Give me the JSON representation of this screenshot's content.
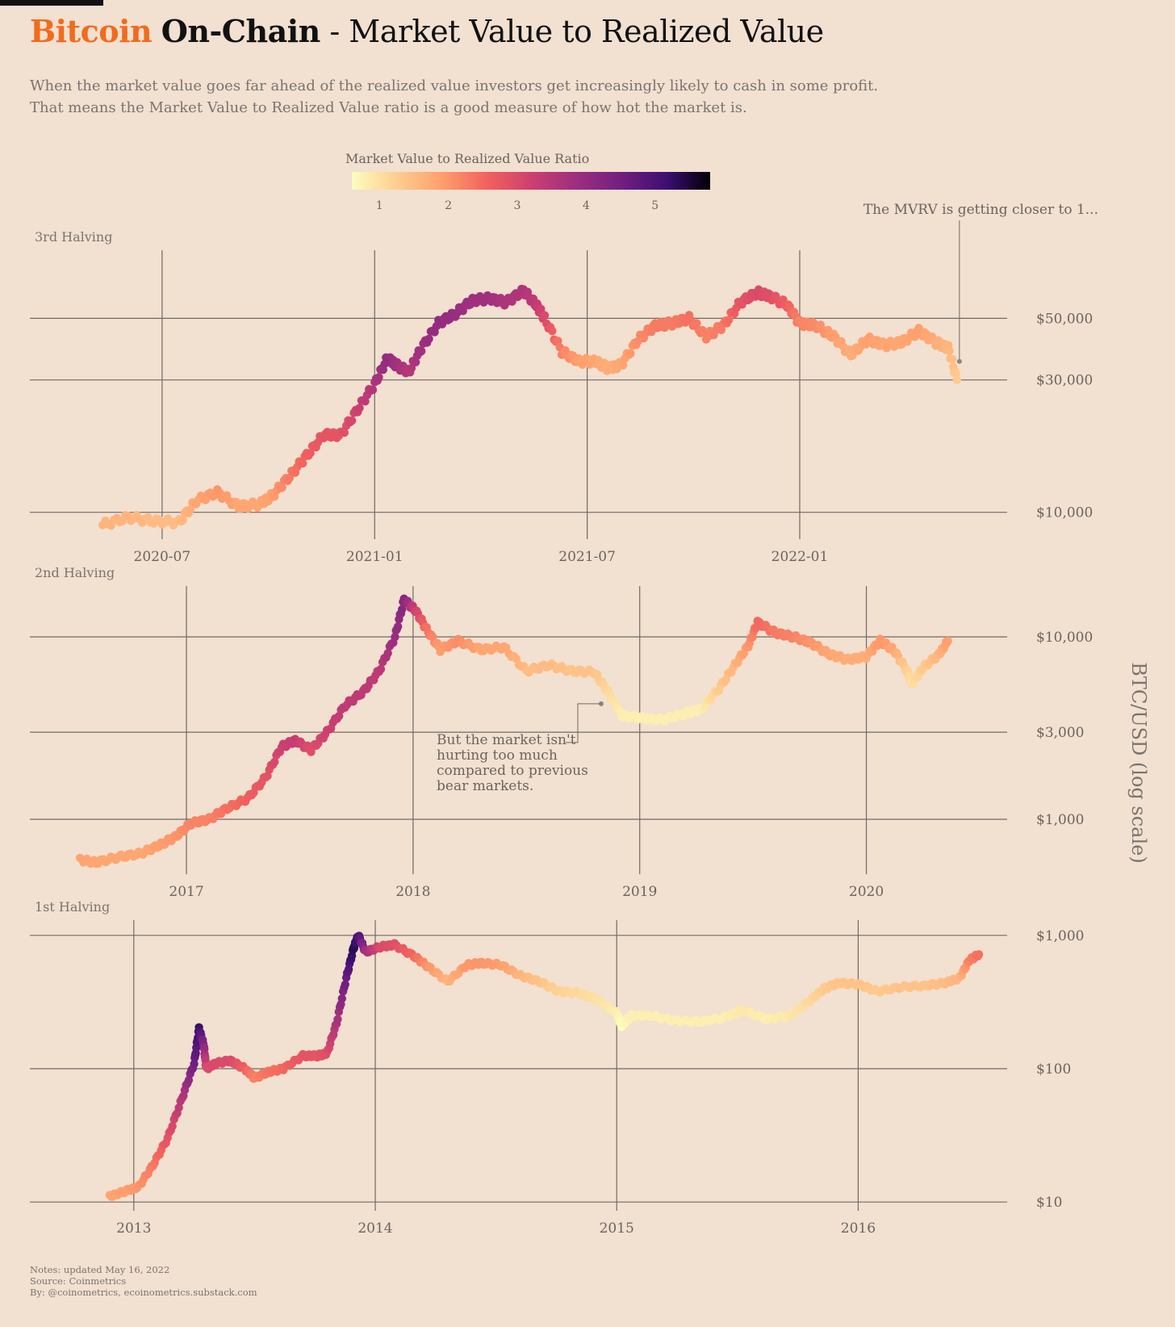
{
  "title": {
    "part1": "Bitcoin",
    "part2": "On-Chain",
    "part3": " - Market Value to Realized Value"
  },
  "subtitle": [
    "When the market value goes far ahead of the realized value investors get increasingly likely to cash in some profit.",
    "That means the Market Value to Realized Value ratio is a good measure of how hot the market is."
  ],
  "footer": [
    "Notes: updated May 16, 2022",
    "Source: Coinmetrics",
    "By: @coinometrics, ecoinometrics.substack.com"
  ],
  "colors": {
    "background": "#f2e0d0",
    "accent": "#f26b1d",
    "grid": "#6f6a66",
    "text_muted": "#7a7470"
  },
  "chart_data": {
    "type": "scatter",
    "ylabel": "BTC/USD (log scale)",
    "y_scale": "log",
    "grid": true,
    "color_legend": {
      "title": "Market Value to Realized Value Ratio",
      "ticks": [
        1,
        2,
        3,
        4,
        5
      ],
      "range": [
        0.6,
        5.8
      ],
      "colormap": "magma_reversed"
    },
    "annotations": [
      {
        "text": "The MVRV is getting closer to 1...",
        "panel": 0,
        "x": 2022.37,
        "y": 31000
      },
      {
        "text": "But the market isn't\nhurting too much\ncompared to previous\nbear markets.",
        "panel": 1,
        "x": 2018.83,
        "y": 4300
      }
    ],
    "panels": [
      {
        "label": "3rd Halving",
        "x_ticks": [
          {
            "v": 2020.5,
            "label": "2020-07"
          },
          {
            "v": 2021.0,
            "label": "2021-01"
          },
          {
            "v": 2021.5,
            "label": "2021-07"
          },
          {
            "v": 2022.0,
            "label": "2022-01"
          }
        ],
        "y_ticks": [
          {
            "v": 10000,
            "label": "$10,000"
          },
          {
            "v": 30000,
            "label": "$30,000"
          },
          {
            "v": 50000,
            "label": "$50,000"
          }
        ],
        "xlim": [
          2020.28,
          2022.45
        ],
        "ylim": [
          8000,
          88000
        ],
        "x": [
          2020.36,
          2020.42,
          2020.48,
          2020.54,
          2020.58,
          2020.63,
          2020.68,
          2020.73,
          2020.76,
          2020.8,
          2020.84,
          2020.88,
          2020.92,
          2020.96,
          2021.0,
          2021.03,
          2021.05,
          2021.08,
          2021.11,
          2021.15,
          2021.19,
          2021.23,
          2021.27,
          2021.31,
          2021.35,
          2021.38,
          2021.4,
          2021.44,
          2021.48,
          2021.52,
          2021.55,
          2021.58,
          2021.62,
          2021.66,
          2021.7,
          2021.74,
          2021.78,
          2021.82,
          2021.86,
          2021.9,
          2021.93,
          2021.97,
          2022.0,
          2022.04,
          2022.08,
          2022.12,
          2022.16,
          2022.2,
          2022.24,
          2022.28,
          2022.32,
          2022.35,
          2022.37
        ],
        "y": [
          9000,
          9600,
          9300,
          9200,
          11000,
          11800,
          10500,
          10700,
          11500,
          13500,
          16000,
          19000,
          19000,
          23500,
          29000,
          36000,
          34000,
          32000,
          39000,
          48000,
          52000,
          58000,
          59000,
          57000,
          63000,
          56000,
          50000,
          38000,
          35000,
          35000,
          33000,
          34000,
          42000,
          47000,
          48000,
          50000,
          43000,
          47000,
          57000,
          62000,
          60000,
          56000,
          48000,
          47000,
          43000,
          37000,
          42000,
          40000,
          41000,
          45000,
          41000,
          39000,
          30000
        ],
        "mvrv": [
          1.6,
          1.6,
          1.5,
          1.5,
          1.8,
          2.0,
          1.8,
          1.8,
          1.9,
          2.3,
          2.6,
          2.8,
          2.8,
          3.2,
          3.6,
          4.0,
          3.8,
          3.5,
          3.8,
          4.0,
          3.9,
          3.8,
          3.8,
          3.6,
          3.6,
          3.4,
          3.0,
          2.2,
          1.9,
          1.8,
          1.7,
          1.8,
          2.1,
          2.3,
          2.3,
          2.4,
          2.2,
          2.3,
          2.8,
          3.0,
          2.9,
          2.6,
          2.2,
          2.1,
          1.9,
          1.7,
          1.9,
          1.8,
          1.8,
          1.9,
          1.7,
          1.6,
          1.3
        ]
      },
      {
        "label": "2nd Halving",
        "x_ticks": [
          {
            "v": 2017,
            "label": "2017"
          },
          {
            "v": 2018,
            "label": "2018"
          },
          {
            "v": 2019,
            "label": "2019"
          },
          {
            "v": 2020,
            "label": "2020"
          }
        ],
        "y_ticks": [
          {
            "v": 1000,
            "label": "$1,000"
          },
          {
            "v": 3000,
            "label": "$3,000"
          },
          {
            "v": 10000,
            "label": "$10,000"
          }
        ],
        "xlim": [
          2016.48,
          2020.55
        ],
        "ylim": [
          500,
          19000
        ],
        "x": [
          2016.53,
          2016.6,
          2016.7,
          2016.8,
          2016.88,
          2016.95,
          2017.02,
          2017.1,
          2017.18,
          2017.27,
          2017.35,
          2017.42,
          2017.48,
          2017.55,
          2017.62,
          2017.7,
          2017.78,
          2017.85,
          2017.92,
          2017.96,
          2018.01,
          2018.06,
          2018.12,
          2018.2,
          2018.3,
          2018.4,
          2018.5,
          2018.6,
          2018.7,
          2018.8,
          2018.86,
          2018.92,
          2019.0,
          2019.1,
          2019.2,
          2019.27,
          2019.35,
          2019.42,
          2019.48,
          2019.52,
          2019.6,
          2019.68,
          2019.76,
          2019.84,
          2019.92,
          2020.0,
          2020.06,
          2020.12,
          2020.18,
          2020.2,
          2020.25,
          2020.32,
          2020.36
        ],
        "y": [
          600,
          580,
          620,
          650,
          720,
          800,
          950,
          1000,
          1150,
          1300,
          1700,
          2500,
          2700,
          2400,
          3000,
          4200,
          5000,
          6500,
          10000,
          16000,
          14000,
          11000,
          8500,
          9500,
          8500,
          8800,
          6500,
          7000,
          6500,
          6400,
          5000,
          3700,
          3600,
          3500,
          3800,
          4000,
          5200,
          7000,
          9000,
          12000,
          10500,
          10000,
          9200,
          8000,
          7500,
          7800,
          9500,
          8500,
          6500,
          5500,
          6800,
          8000,
          9500
        ],
        "mvrv": [
          1.8,
          1.8,
          1.8,
          1.8,
          1.9,
          2.0,
          2.2,
          2.2,
          2.4,
          2.6,
          2.8,
          3.2,
          3.3,
          2.9,
          3.2,
          3.4,
          3.4,
          3.4,
          3.9,
          4.2,
          3.2,
          2.4,
          1.9,
          2.1,
          1.8,
          1.8,
          1.5,
          1.5,
          1.4,
          1.4,
          1.1,
          0.8,
          0.8,
          0.8,
          0.8,
          0.8,
          1.3,
          1.6,
          2.0,
          2.5,
          2.3,
          2.2,
          2.0,
          1.8,
          1.7,
          1.7,
          2.0,
          1.8,
          1.2,
          1.0,
          1.3,
          1.6,
          1.9
        ]
      },
      {
        "label": "1st Halving",
        "x_ticks": [
          {
            "v": 2013,
            "label": "2013"
          },
          {
            "v": 2014,
            "label": "2014"
          },
          {
            "v": 2015,
            "label": "2015"
          },
          {
            "v": 2016,
            "label": "2016"
          }
        ],
        "y_ticks": [
          {
            "v": 10,
            "label": "$10"
          },
          {
            "v": 100,
            "label": "$100"
          },
          {
            "v": 1000,
            "label": "$1,000"
          }
        ],
        "xlim": [
          2012.73,
          2016.55
        ],
        "ylim": [
          8.6,
          1300
        ],
        "x": [
          2012.9,
          2012.96,
          2013.02,
          2013.08,
          2013.14,
          2013.2,
          2013.25,
          2013.27,
          2013.29,
          2013.3,
          2013.34,
          2013.4,
          2013.46,
          2013.5,
          2013.56,
          2013.62,
          2013.7,
          2013.76,
          2013.8,
          2013.84,
          2013.88,
          2013.91,
          2013.93,
          2013.96,
          2014.02,
          2014.08,
          2014.16,
          2014.22,
          2014.3,
          2014.38,
          2014.44,
          2014.52,
          2014.6,
          2014.68,
          2014.76,
          2014.84,
          2014.92,
          2015.0,
          2015.02,
          2015.06,
          2015.14,
          2015.24,
          2015.34,
          2015.44,
          2015.52,
          2015.62,
          2015.72,
          2015.8,
          2015.86,
          2015.92,
          2016.0,
          2016.08,
          2016.18,
          2016.28,
          2016.36,
          2016.42,
          2016.46,
          2016.5
        ],
        "y": [
          11,
          12,
          13,
          19,
          30,
          60,
          110,
          200,
          150,
          100,
          110,
          115,
          100,
          85,
          95,
          100,
          125,
          125,
          130,
          220,
          480,
          800,
          1000,
          750,
          820,
          850,
          700,
          580,
          450,
          600,
          620,
          600,
          500,
          450,
          380,
          370,
          330,
          260,
          210,
          250,
          250,
          230,
          225,
          240,
          275,
          235,
          250,
          325,
          400,
          440,
          430,
          380,
          410,
          420,
          440,
          480,
          650,
          720
        ],
        "mvrv": [
          1.8,
          1.9,
          2.0,
          2.3,
          2.8,
          3.5,
          4.5,
          5.2,
          4.2,
          3.0,
          3.0,
          3.0,
          2.6,
          2.2,
          2.4,
          2.5,
          2.8,
          2.8,
          2.9,
          3.6,
          4.6,
          5.4,
          5.0,
          3.8,
          3.0,
          2.9,
          2.5,
          2.0,
          1.6,
          2.0,
          2.0,
          1.9,
          1.6,
          1.4,
          1.2,
          1.1,
          1.0,
          0.8,
          0.6,
          0.8,
          0.8,
          0.8,
          0.8,
          0.8,
          0.9,
          0.8,
          0.9,
          1.1,
          1.3,
          1.4,
          1.4,
          1.3,
          1.4,
          1.4,
          1.5,
          1.6,
          2.2,
          2.4
        ]
      }
    ]
  }
}
